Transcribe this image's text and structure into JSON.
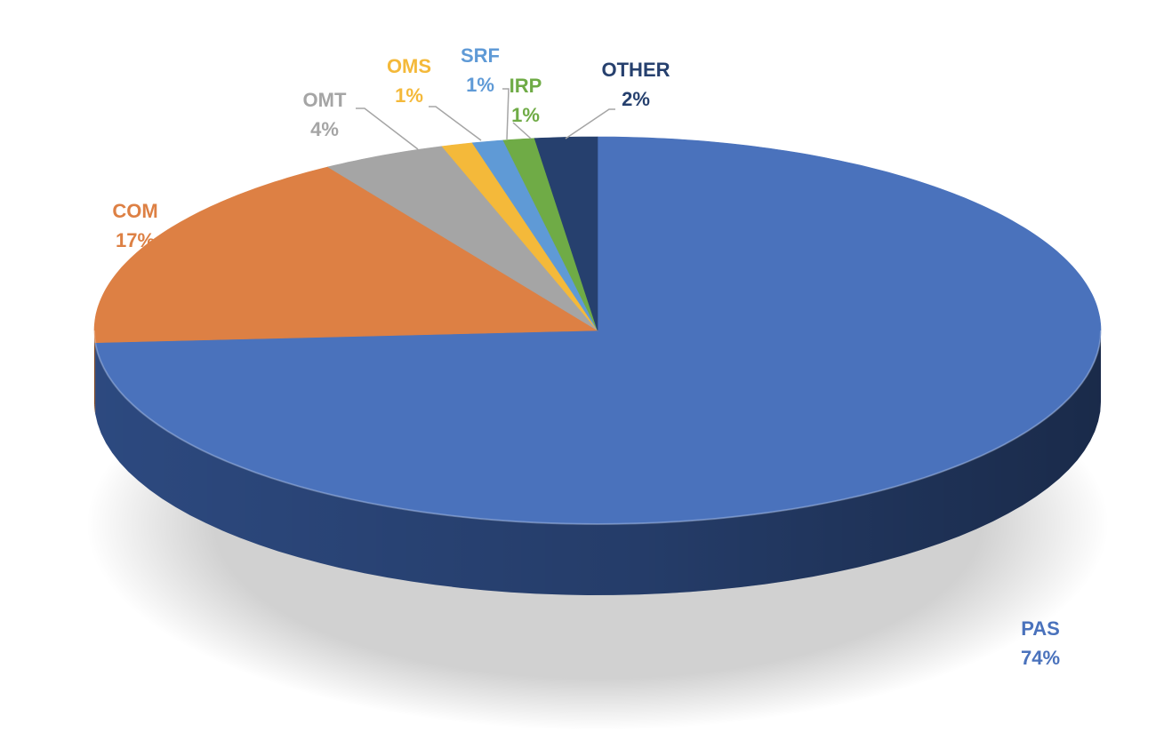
{
  "chart_data": {
    "type": "pie",
    "style": "3d",
    "series": [
      {
        "values": [
          {
            "label": "PAS",
            "value": 74,
            "pct_label": "74%",
            "color": "#4A72BC",
            "side_color": "#2F4D86",
            "label_color": "#4A72BC"
          },
          {
            "label": "COM",
            "value": 17,
            "pct_label": "17%",
            "color": "#DD8044",
            "side_color": "#9E5526",
            "label_color": "#DD8044"
          },
          {
            "label": "OMT",
            "value": 4,
            "pct_label": "4%",
            "color": "#A5A5A5",
            "side_color": "#777777",
            "label_color": "#A5A5A5"
          },
          {
            "label": "OMS",
            "value": 1,
            "pct_label": "1%",
            "color": "#F4B93A",
            "side_color": "#B5841F",
            "label_color": "#F4B93A"
          },
          {
            "label": "SRF",
            "value": 1,
            "pct_label": "1%",
            "color": "#5F9AD6",
            "side_color": "#3E6D9E",
            "label_color": "#5F9AD6"
          },
          {
            "label": "IRP",
            "value": 1,
            "pct_label": "1%",
            "color": "#6FAB46",
            "side_color": "#4B7A2C",
            "label_color": "#6FAB46"
          },
          {
            "label": "OTHER",
            "value": 2,
            "pct_label": "2%",
            "color": "#26406E",
            "side_color": "#18294A",
            "label_color": "#26406E"
          }
        ]
      }
    ],
    "start_angle": "12 o'clock",
    "direction": "clockwise",
    "leader_line_color": "#A5A5A5",
    "legend": "none",
    "title": ""
  }
}
